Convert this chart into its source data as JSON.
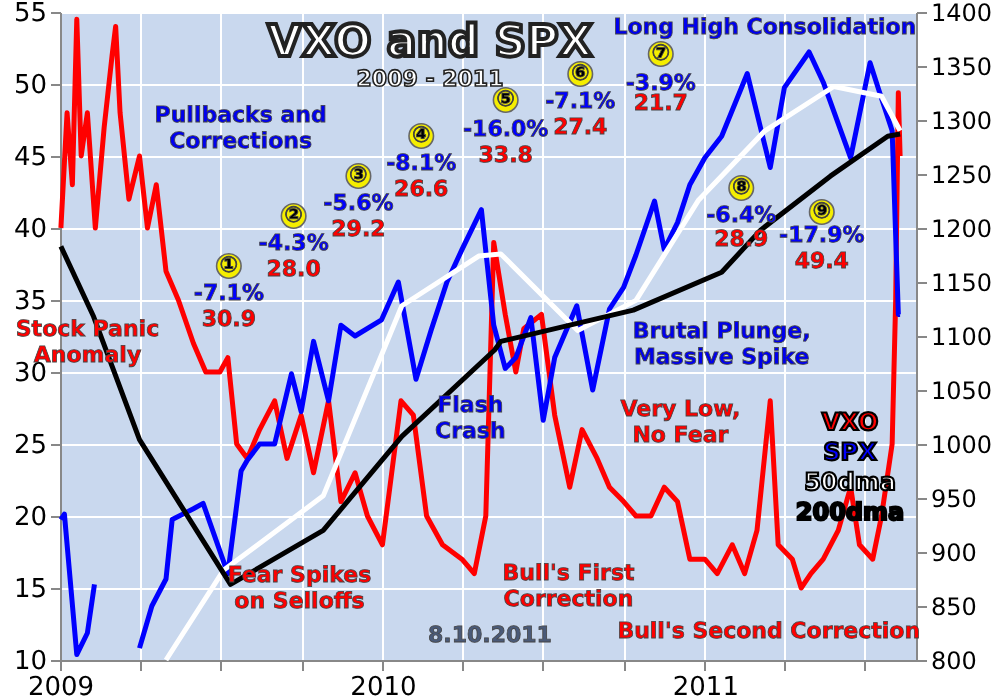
{
  "chart_data": {
    "type": "line",
    "title": "VXO and SPX",
    "subtitle": "2009 - 2011",
    "xlim": [
      "2009-01-01",
      "2011-08-28"
    ],
    "xticks": [
      {
        "value": "2009-01-01",
        "label": "2009"
      },
      {
        "value": "2009-04-01",
        "label": null
      },
      {
        "value": "2009-07-01",
        "label": null
      },
      {
        "value": "2009-10-01",
        "label": null
      },
      {
        "value": "2010-01-01",
        "label": "2010"
      },
      {
        "value": "2010-04-01",
        "label": null
      },
      {
        "value": "2010-07-01",
        "label": null
      },
      {
        "value": "2010-10-01",
        "label": null
      },
      {
        "value": "2011-01-01",
        "label": "2011"
      },
      {
        "value": "2011-04-01",
        "label": null
      },
      {
        "value": "2011-07-01",
        "label": null
      }
    ],
    "ylim": [
      10,
      55
    ],
    "yticks": [
      10,
      15,
      20,
      25,
      30,
      35,
      40,
      45,
      50,
      55
    ],
    "y2lim": [
      800,
      1400
    ],
    "y2ticks": [
      800,
      850,
      900,
      950,
      1000,
      1050,
      1100,
      1150,
      1200,
      1250,
      1300,
      1350,
      1400
    ],
    "grid": true,
    "legend": "bottom right",
    "series": [
      {
        "name": "VXO",
        "color": "#ff0000",
        "x": [
          "2009-01-02",
          "2009-01-09",
          "2009-01-15",
          "2009-01-20",
          "2009-01-25",
          "2009-02-01",
          "2009-02-10",
          "2009-02-20",
          "2009-03-01",
          "2009-03-05",
          "2009-03-10",
          "2009-03-20",
          "2009-04-01",
          "2009-04-10",
          "2009-04-20",
          "2009-05-01",
          "2009-05-15",
          "2009-06-01",
          "2009-06-15",
          "2009-07-01",
          "2009-07-10",
          "2009-07-20",
          "2009-08-01",
          "2009-08-15",
          "2009-09-01",
          "2009-09-15",
          "2009-10-01",
          "2009-10-15",
          "2009-11-01",
          "2009-11-15",
          "2009-12-01",
          "2009-12-15",
          "2010-01-01",
          "2010-01-22",
          "2010-02-05",
          "2010-02-20",
          "2010-03-10",
          "2010-04-01",
          "2010-04-15",
          "2010-04-28",
          "2010-05-07",
          "2010-05-20",
          "2010-06-01",
          "2010-06-10",
          "2010-06-30",
          "2010-07-15",
          "2010-08-01",
          "2010-08-15",
          "2010-09-01",
          "2010-09-15",
          "2010-10-01",
          "2010-10-15",
          "2010-11-01",
          "2010-11-16",
          "2010-12-01",
          "2010-12-15",
          "2011-01-01",
          "2011-01-15",
          "2011-02-01",
          "2011-02-15",
          "2011-03-01",
          "2011-03-16",
          "2011-03-25",
          "2011-04-10",
          "2011-04-20",
          "2011-05-01",
          "2011-05-15",
          "2011-06-01",
          "2011-06-15",
          "2011-06-25",
          "2011-07-10",
          "2011-07-20",
          "2011-08-01",
          "2011-08-05",
          "2011-08-08",
          "2011-08-10"
        ],
        "values": [
          40,
          48,
          43,
          54.5,
          45,
          48,
          40,
          47,
          52,
          54,
          48,
          42,
          45,
          40,
          43,
          37,
          35,
          32,
          30,
          30,
          31,
          25,
          24,
          26,
          28,
          24,
          27,
          23,
          28,
          21,
          23,
          20,
          18,
          28,
          27,
          20,
          18,
          17,
          16,
          20,
          39,
          34,
          30,
          33,
          34,
          27,
          22,
          26,
          24,
          22,
          21,
          20,
          20,
          22,
          21,
          17,
          17,
          16,
          18,
          16,
          19,
          28,
          18,
          17,
          15,
          16,
          17,
          19,
          22,
          18,
          17,
          20,
          25,
          35,
          49.4,
          45
        ]
      },
      {
        "name": "SPX",
        "color": "#0000ff",
        "axis": "y2",
        "x": [
          "2009-01-02",
          "2009-01-06",
          "2009-01-20",
          "2009-02-01",
          "2009-02-09",
          "2009-02-17",
          "2009-03-30",
          "2009-04-01",
          "2009-04-15",
          "2009-05-01",
          "2009-05-08",
          "2009-06-01",
          "2009-06-12",
          "2009-07-10",
          "2009-07-25",
          "2009-08-01",
          "2009-08-15",
          "2009-09-01",
          "2009-09-20",
          "2009-10-01",
          "2009-10-15",
          "2009-11-01",
          "2009-11-15",
          "2009-12-01",
          "2009-12-31",
          "2010-01-19",
          "2010-02-08",
          "2010-02-25",
          "2010-03-15",
          "2010-04-01",
          "2010-04-23",
          "2010-05-07",
          "2010-05-20",
          "2010-06-01",
          "2010-06-18",
          "2010-07-02",
          "2010-07-15",
          "2010-08-09",
          "2010-08-27",
          "2010-09-15",
          "2010-10-01",
          "2010-10-15",
          "2010-11-05",
          "2010-11-16",
          "2010-12-01",
          "2010-12-15",
          "2011-01-01",
          "2011-01-20",
          "2011-02-18",
          "2011-03-16",
          "2011-04-01",
          "2011-04-29",
          "2011-05-15",
          "2011-06-15",
          "2011-07-07",
          "2011-07-20",
          "2011-08-01",
          "2011-08-08",
          "2011-08-10"
        ],
        "values": [
          930,
          935,
          805,
          825,
          870,
          null,
          null,
          811,
          850,
          875,
          930,
          940,
          945,
          880,
          975,
          985,
          1000,
          1000,
          1065,
          1030,
          1095,
          1040,
          1110,
          1100,
          1115,
          1150,
          1060,
          1105,
          1150,
          1180,
          1217,
          1110,
          1070,
          1080,
          1117,
          1022,
          1080,
          1128,
          1050,
          1125,
          1145,
          1175,
          1225,
          1180,
          1205,
          1240,
          1265,
          1285,
          1343,
          1256,
          1330,
          1363,
          1335,
          1265,
          1353,
          1320,
          1290,
          1120,
          1120
        ]
      },
      {
        "name": "50dma",
        "color": "#ffffff",
        "axis": "y2",
        "x": [
          "2009-05-01",
          "2009-07-05",
          "2009-10-26",
          "2010-01-23",
          "2010-04-20",
          "2010-05-15",
          "2010-08-10",
          "2010-10-15",
          "2010-12-25",
          "2011-03-10",
          "2011-05-27",
          "2011-07-20",
          "2011-08-10"
        ],
        "values": [
          800,
          883,
          952,
          1128,
          1174,
          1176,
          1105,
          1133,
          1226,
          1290,
          1331,
          1322,
          1290
        ]
      },
      {
        "name": "200dma",
        "color": "#000000",
        "axis": "y2",
        "x": [
          "2009-01-02",
          "2009-02-08",
          "2009-04-01",
          "2009-07-13",
          "2009-10-26",
          "2010-01-23",
          "2010-05-08",
          "2010-05-15",
          "2010-10-12",
          "2011-01-20",
          "2011-03-05",
          "2011-05-23",
          "2011-07-27",
          "2011-08-10"
        ],
        "values": [
          1183,
          1118,
          1004,
          870,
          920,
          1007,
          1087,
          1095,
          1124,
          1159,
          1198,
          1248,
          1285,
          1287
        ]
      }
    ],
    "annotations": [
      "Pullbacks and\nCorrections",
      "①",
      "-7.1%",
      "30.9",
      "②",
      "-4.3%",
      "28.0",
      "③",
      "-5.6%",
      "29.2",
      "④",
      "-8.1%",
      "26.6",
      "⑤",
      "-16.0%",
      "33.8",
      "⑥",
      "-7.1%",
      "27.4",
      "⑦",
      "-3.9%",
      "21.7",
      "⑧",
      "-6.4%",
      "28.9",
      "⑨",
      "-17.9%",
      "49.4",
      "Long High Consolidation",
      "Brutal Plunge,\nMassive Spike",
      "Stock Panic\nAnomaly",
      "Flash\nCrash",
      "Fear Spikes\non Selloffs",
      "Bull's First\nCorrection",
      "Very Low,\nNo Fear",
      "Bull's Second Correction",
      "8.10.2011"
    ]
  }
}
